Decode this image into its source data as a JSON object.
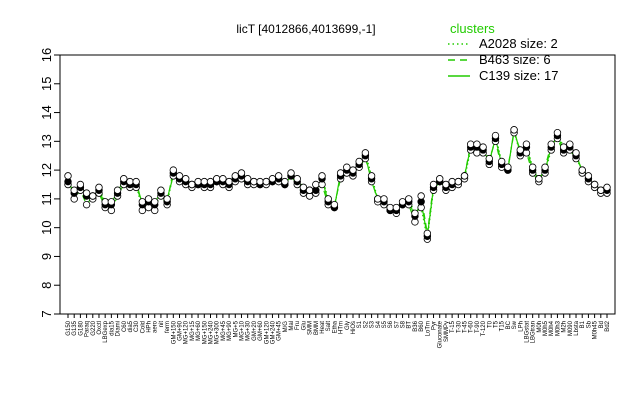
{
  "chart_data": {
    "type": "line",
    "title": "licT [4012866,4013699,-1]",
    "ylim": [
      7,
      16
    ],
    "yticks": [
      7,
      8,
      9,
      10,
      11,
      12,
      13,
      14,
      15,
      16
    ],
    "legend": {
      "title": "clusters",
      "placement": "top-right",
      "entries": [
        {
          "label": "A2028 size: 2",
          "style": "dotted"
        },
        {
          "label": "B463 size: 6",
          "style": "dashed"
        },
        {
          "label": "C139 size: 17",
          "style": "solid"
        }
      ]
    },
    "line_color": "#22cc00",
    "categories": [
      "G150",
      "G135",
      "G180",
      "Paraq",
      "G220",
      "Oxctl",
      "LBGexp",
      "dia15",
      "Diami",
      "C60",
      "dia5",
      "C30",
      "Cold",
      "HPh",
      "aero",
      "nit",
      "ferm",
      "GM+150",
      "GM+90",
      "MG+120",
      "MG+15",
      "MG+60",
      "MG+150",
      "MG+240",
      "MG+300",
      "MG+45",
      "MG+90",
      "MG+5",
      "MG+10",
      "MG+30",
      "GM+20",
      "GM+60",
      "GM+120",
      "GM+240",
      "GM+45",
      "M/G",
      "Mal",
      "Fru",
      "Glu",
      "SMM",
      "BMM",
      "Heat",
      "Salt",
      "Etha",
      "HTm",
      "Gly",
      "HiOs",
      "S1",
      "S2",
      "S3",
      "S4",
      "S5",
      "S6",
      "S7",
      "S8",
      "BT",
      "B36",
      "B60",
      "LoTm",
      "Pyr",
      "Gluconate",
      "SMMPy",
      "T-15",
      "T-30",
      "T-45",
      "T-60",
      "T-90",
      "T-120",
      "T0",
      "T5",
      "T15",
      "BC",
      "Sw",
      "LPh",
      "LBGstat",
      "LBGtran",
      "M0h",
      "M0h5",
      "M0h4",
      "M0h3",
      "M2h",
      "M090",
      "Lbsta",
      "B1",
      "Sb",
      "M0h45",
      "Bd",
      "Bd2"
    ],
    "series": [
      {
        "values": [
          11.6,
          11.2,
          11.5,
          11.1,
          11.0,
          11.4,
          10.9,
          10.8,
          11.3,
          11.6,
          11.4,
          11.5,
          10.6,
          11.0,
          10.8,
          11.1,
          10.8,
          11.9,
          11.8,
          11.7,
          11.5,
          11.6,
          11.4,
          11.5,
          11.7,
          11.6,
          11.6,
          11.8,
          11.9,
          11.7,
          11.6,
          11.5,
          11.6,
          11.7,
          11.8,
          11.6,
          11.9,
          11.7,
          11.4,
          11.3,
          11.2,
          11.8,
          11.0,
          10.7,
          11.8,
          12.1,
          11.9,
          12.3,
          12.6,
          11.8,
          11.0,
          10.8,
          10.6,
          10.7,
          10.9,
          11.0,
          10.5,
          10.7,
          9.6,
          11.3,
          11.6,
          11.5,
          11.4,
          11.6,
          11.7,
          12.7,
          12.9,
          12.6,
          12.2,
          13.2,
          12.3,
          12.0,
          13.4,
          12.5,
          12.9,
          12.1,
          11.7,
          11.9,
          12.7,
          13.3,
          12.8,
          12.7,
          12.4,
          12.0,
          11.8,
          11.5,
          11.3,
          11.4
        ]
      },
      {
        "values": [
          11.8,
          11.0,
          11.3,
          10.8,
          11.1,
          11.2,
          10.7,
          10.6,
          11.1,
          11.5,
          11.6,
          11.4,
          10.9,
          10.7,
          10.6,
          11.3,
          10.9,
          12.0,
          11.6,
          11.5,
          11.4,
          11.5,
          11.6,
          11.4,
          11.6,
          11.5,
          11.4,
          11.6,
          11.7,
          11.5,
          11.6,
          11.6,
          11.5,
          11.6,
          11.6,
          11.5,
          11.8,
          11.5,
          11.3,
          11.1,
          11.5,
          11.5,
          10.8,
          10.8,
          11.7,
          11.9,
          12.0,
          12.1,
          12.4,
          11.7,
          10.9,
          11.0,
          10.7,
          10.5,
          10.8,
          10.8,
          10.2,
          11.1,
          9.8,
          11.5,
          11.7,
          11.3,
          11.6,
          11.5,
          11.8,
          12.9,
          12.6,
          12.8,
          12.4,
          13.0,
          12.1,
          12.1,
          13.3,
          12.7,
          12.6,
          11.9,
          11.6,
          12.1,
          12.9,
          13.1,
          12.6,
          12.9,
          12.6,
          11.9,
          11.6,
          11.4,
          11.2,
          11.2
        ]
      },
      {
        "values": [
          11.5,
          11.3,
          11.4,
          11.2,
          11.1,
          11.3,
          10.8,
          10.9,
          11.2,
          11.7,
          11.5,
          11.6,
          10.8,
          10.9,
          10.9,
          11.2,
          11.0,
          11.8,
          11.7,
          11.6,
          11.5,
          11.5,
          11.5,
          11.6,
          11.6,
          11.7,
          11.5,
          11.7,
          11.8,
          11.6,
          11.5,
          11.5,
          11.6,
          11.6,
          11.7,
          11.5,
          11.8,
          11.6,
          11.2,
          11.3,
          11.3,
          11.7,
          10.9,
          10.7,
          11.9,
          12.0,
          11.8,
          12.2,
          12.5,
          11.6,
          11.0,
          10.9,
          10.6,
          10.6,
          10.8,
          10.9,
          10.4,
          10.9,
          9.7,
          11.4,
          11.6,
          11.4,
          11.5,
          11.6,
          11.8,
          12.8,
          12.8,
          12.7,
          12.3,
          13.1,
          12.2,
          12.0,
          13.4,
          12.6,
          12.8,
          12.0,
          11.7,
          12.0,
          12.8,
          13.2,
          12.7,
          12.8,
          12.5,
          12.0,
          11.7,
          11.5,
          11.3,
          11.3
        ]
      }
    ]
  }
}
